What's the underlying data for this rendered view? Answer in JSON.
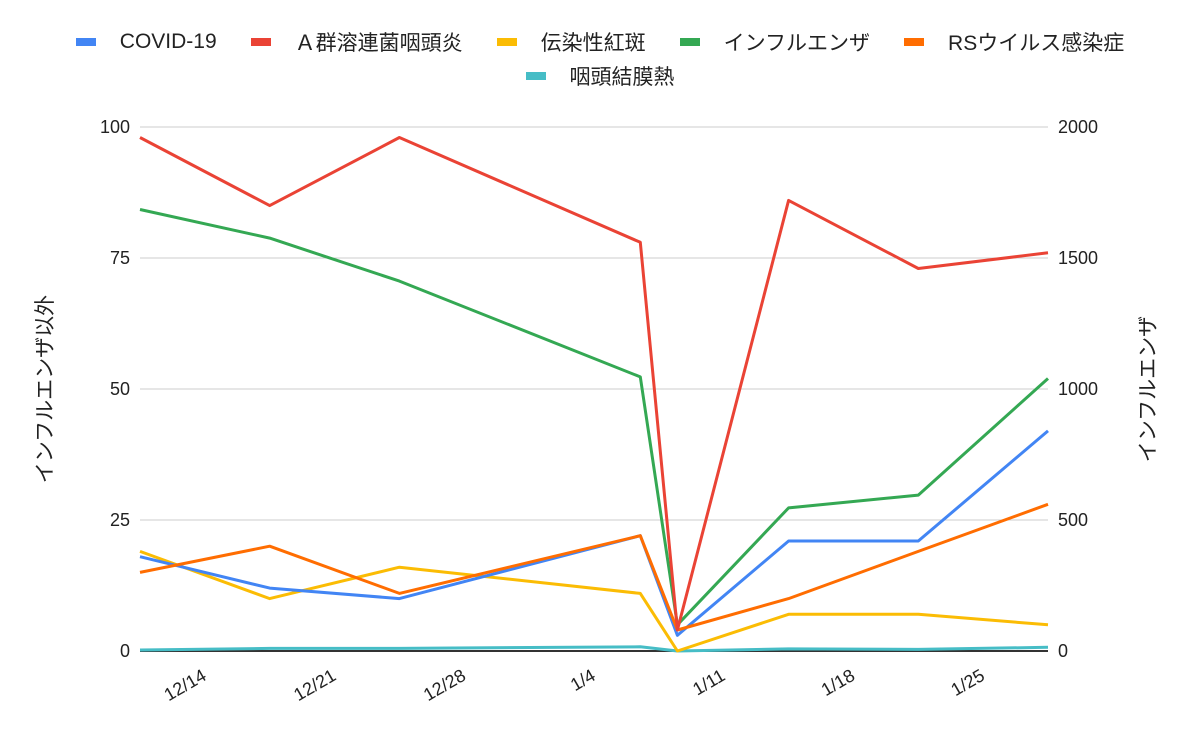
{
  "chart_data": {
    "type": "line",
    "x": [
      "12/11",
      "12/18",
      "12/25",
      "1/7",
      "1/9",
      "1/15",
      "1/22",
      "1/29"
    ],
    "x_ticks": [
      "12/14",
      "12/21",
      "12/28",
      "1/4",
      "1/11",
      "1/18",
      "1/25"
    ],
    "ylabel_left": "インフルエンザ以外",
    "ylabel_right": "インフルエンザ",
    "ylim_left": [
      0,
      100
    ],
    "ylim_right": [
      0,
      2000
    ],
    "yticks_left": [
      0,
      25,
      50,
      75,
      100
    ],
    "yticks_right": [
      0,
      500,
      1000,
      1500,
      2000
    ],
    "grid": true,
    "legend": "top",
    "series": [
      {
        "name": "COVID-19",
        "axis": "left",
        "color": "#4285f4",
        "values": [
          18,
          12,
          10,
          22,
          3,
          21,
          21,
          42
        ]
      },
      {
        "name": "Ａ群溶連菌咽頭炎",
        "axis": "left",
        "color": "#ea4335",
        "values": [
          98,
          85,
          98,
          78,
          4,
          86,
          73,
          76
        ]
      },
      {
        "name": "伝染性紅斑",
        "axis": "left",
        "color": "#fbbc04",
        "values": [
          19,
          10,
          16,
          11,
          0,
          7,
          7,
          5
        ]
      },
      {
        "name": "インフルエンザ",
        "axis": "right",
        "color": "#34a853",
        "values": [
          1685,
          1576,
          1412,
          1046,
          100,
          546,
          595,
          1040
        ]
      },
      {
        "name": "RSウイルス感染症",
        "axis": "left",
        "color": "#ff6d01",
        "values": [
          15,
          20,
          11,
          22,
          4,
          10,
          19,
          28
        ]
      },
      {
        "name": "咽頭結膜熱",
        "axis": "left",
        "color": "#46bdc6",
        "values": [
          0.2,
          0.5,
          0.5,
          0.8,
          0,
          0.4,
          0.3,
          0.7
        ]
      }
    ]
  }
}
